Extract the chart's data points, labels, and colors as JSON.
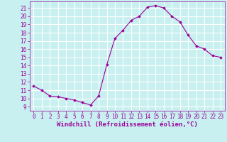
{
  "x": [
    0,
    1,
    2,
    3,
    4,
    5,
    6,
    7,
    8,
    9,
    10,
    11,
    12,
    13,
    14,
    15,
    16,
    17,
    18,
    19,
    20,
    21,
    22,
    23
  ],
  "y": [
    11.5,
    11.0,
    10.3,
    10.2,
    10.0,
    9.8,
    9.5,
    9.2,
    10.3,
    14.1,
    17.3,
    18.3,
    19.5,
    20.0,
    21.1,
    21.3,
    21.0,
    20.0,
    19.3,
    17.7,
    16.4,
    16.0,
    15.2,
    15.0
  ],
  "line_color": "#990099",
  "marker": "D",
  "marker_size": 1.8,
  "line_width": 0.8,
  "bg_color": "#c8f0f0",
  "grid_color": "#ffffff",
  "xlabel": "Windchill (Refroidissement éolien,°C)",
  "xlim": [
    -0.5,
    23.5
  ],
  "ylim": [
    8.5,
    21.8
  ],
  "yticks": [
    9,
    10,
    11,
    12,
    13,
    14,
    15,
    16,
    17,
    18,
    19,
    20,
    21
  ],
  "xticks": [
    0,
    1,
    2,
    3,
    4,
    5,
    6,
    7,
    8,
    9,
    10,
    11,
    12,
    13,
    14,
    15,
    16,
    17,
    18,
    19,
    20,
    21,
    22,
    23
  ],
  "tick_label_size": 5.5,
  "xlabel_size": 6.5,
  "tick_color": "#990099",
  "axis_color": "#990099"
}
